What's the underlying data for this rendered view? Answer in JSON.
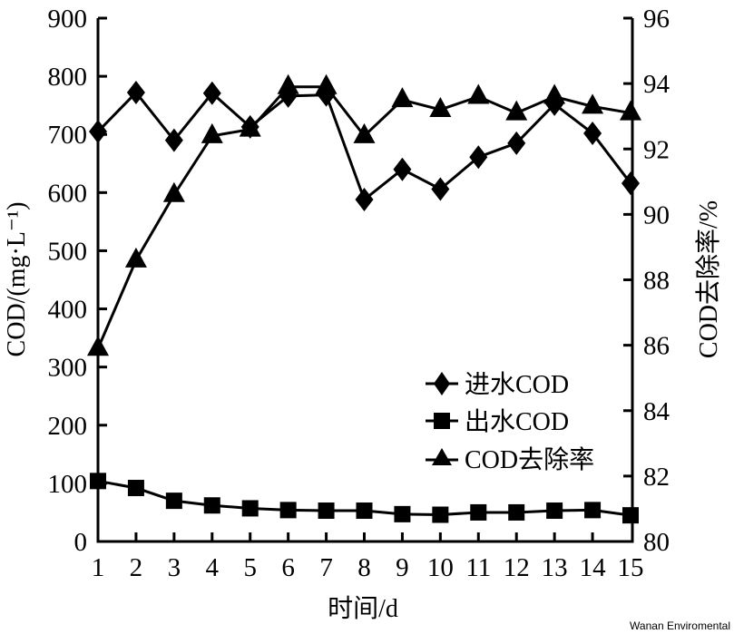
{
  "chart_data": {
    "type": "line",
    "title": "",
    "xlabel": "时间/d",
    "ylabel": "COD/(mg·L⁻¹)",
    "ylabel_right": "COD去除率/%",
    "x": [
      1,
      2,
      3,
      4,
      5,
      6,
      7,
      8,
      9,
      10,
      11,
      12,
      13,
      14,
      15
    ],
    "xticks": [
      "1",
      "2",
      "3",
      "4",
      "5",
      "6",
      "7",
      "8",
      "9",
      "10",
      "11",
      "12",
      "13",
      "14",
      "15"
    ],
    "ylim": [
      0,
      900
    ],
    "yticks": [
      "0",
      "100",
      "200",
      "300",
      "400",
      "500",
      "600",
      "700",
      "800",
      "900"
    ],
    "ylim_right": [
      80,
      96
    ],
    "yticks_right": [
      "80",
      "82",
      "84",
      "86",
      "88",
      "90",
      "92",
      "94",
      "96"
    ],
    "grid": false,
    "legend_position": "lower right (inside plot)",
    "series": [
      {
        "name": "进水COD",
        "axis": "left",
        "marker": "diamond",
        "values": [
          705,
          772,
          690,
          771,
          713,
          766,
          768,
          588,
          640,
          606,
          661,
          685,
          752,
          702,
          616
        ]
      },
      {
        "name": "出水COD",
        "axis": "left",
        "marker": "square",
        "values": [
          104,
          92,
          70,
          62,
          57,
          54,
          53,
          53,
          47,
          46,
          50,
          50,
          53,
          54,
          45
        ]
      },
      {
        "name": "COD去除率",
        "axis": "right",
        "marker": "triangle",
        "values": [
          85.9,
          88.6,
          90.6,
          92.4,
          92.6,
          93.9,
          93.9,
          92.4,
          93.5,
          93.2,
          93.6,
          93.1,
          93.6,
          93.3,
          93.1
        ]
      }
    ]
  },
  "legend": {
    "items": [
      {
        "label": "进水COD",
        "marker": "diamond"
      },
      {
        "label": "出水COD",
        "marker": "square"
      },
      {
        "label": "COD去除率",
        "marker": "triangle"
      }
    ]
  },
  "watermark": "Wanan Enviromental"
}
